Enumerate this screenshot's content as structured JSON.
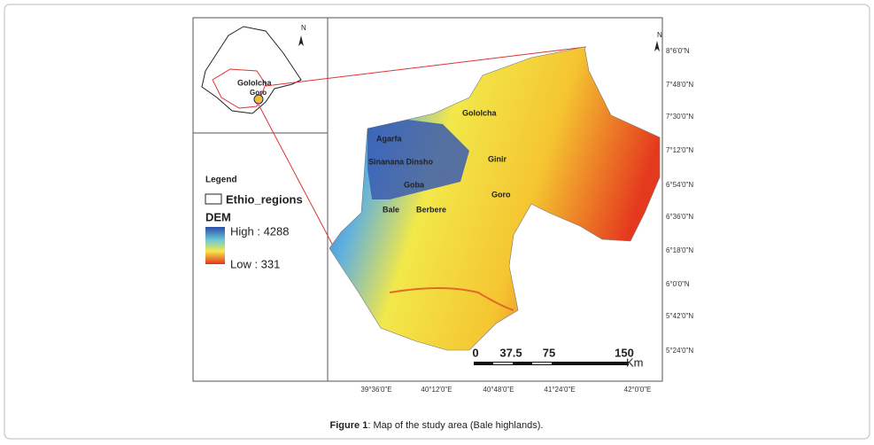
{
  "inset": {
    "north": "N",
    "labels": [
      "Gololcha",
      "Goro"
    ]
  },
  "legend": {
    "title": "Legend",
    "regions": "Ethio_regions",
    "dem_title": "DEM",
    "high": "High : 4288",
    "low": "Low : 331"
  },
  "map": {
    "north": "N",
    "places": [
      "Gololcha",
      "Agarfa",
      "Sinanana Dinsho",
      "Ginir",
      "Goba",
      "Goro",
      "Bale",
      "Berbere"
    ],
    "latitudes": [
      "8°6'0\"N",
      "7°48'0\"N",
      "7°30'0\"N",
      "7°12'0\"N",
      "6°54'0\"N",
      "6°36'0\"N",
      "6°18'0\"N",
      "6°0'0\"N",
      "5°42'0\"N",
      "5°24'0\"N"
    ],
    "longitudes": [
      "39°36'0\"E",
      "40°12'0\"E",
      "40°48'0\"E",
      "41°24'0\"E",
      "42°0'0\"E"
    ],
    "scale_bar": {
      "ticks": [
        "0",
        "37.5",
        "75",
        "150"
      ],
      "unit": "Km"
    }
  },
  "caption": {
    "label": "Figure 1",
    "text": ": Map of the study area (Bale highlands)."
  }
}
